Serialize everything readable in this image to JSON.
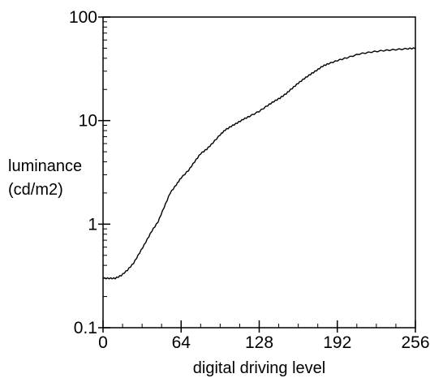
{
  "chart_data": {
    "type": "line",
    "title": "",
    "xlabel": "digital driving level",
    "ylabel_lines": [
      "luminance",
      "(cd/m2)"
    ],
    "xlim": [
      0,
      256
    ],
    "ylim": [
      0.1,
      100
    ],
    "yscale": "log",
    "grid": false,
    "legend": "none",
    "x_ticks": [
      {
        "value": 0,
        "label": "0"
      },
      {
        "value": 64,
        "label": "64"
      },
      {
        "value": 128,
        "label": "128"
      },
      {
        "value": 192,
        "label": "192"
      },
      {
        "value": 256,
        "label": "256"
      }
    ],
    "y_ticks": [
      {
        "value": 0.1,
        "label": "0.1"
      },
      {
        "value": 1,
        "label": "1"
      },
      {
        "value": 10,
        "label": "10"
      },
      {
        "value": 100,
        "label": "100"
      }
    ],
    "series": [
      {
        "color": "#000000",
        "x": [
          0,
          5,
          10,
          15,
          20,
          25,
          30,
          35,
          40,
          45,
          50,
          55,
          60,
          64,
          70,
          75,
          80,
          85,
          90,
          96,
          100,
          105,
          110,
          115,
          120,
          128,
          135,
          140,
          145,
          150,
          155,
          160,
          165,
          170,
          175,
          180,
          185,
          192,
          200,
          210,
          220,
          230,
          240,
          250,
          256
        ],
        "y": [
          0.3,
          0.3,
          0.3,
          0.32,
          0.36,
          0.42,
          0.53,
          0.67,
          0.86,
          1.05,
          1.45,
          2.0,
          2.4,
          2.8,
          3.3,
          4.0,
          4.8,
          5.3,
          6.1,
          7.3,
          8.1,
          8.8,
          9.5,
          10.3,
          11.0,
          12.3,
          14.0,
          15.3,
          16.5,
          18.2,
          20.5,
          23.0,
          25.5,
          28.0,
          30.5,
          33.5,
          35.5,
          38.0,
          40.5,
          44.0,
          46.0,
          47.5,
          48.5,
          49.5,
          50.0
        ]
      }
    ]
  }
}
